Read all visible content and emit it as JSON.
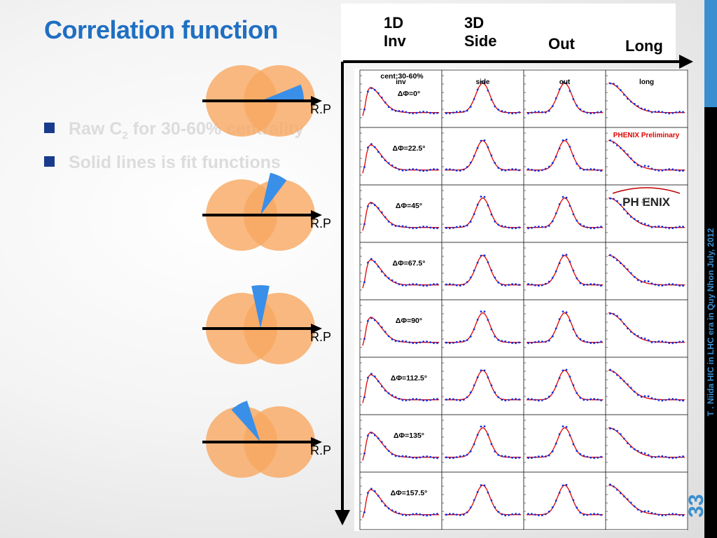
{
  "slide": {
    "title": "Correlation function",
    "bullets": [
      {
        "pre": "Raw C",
        "sub": "2",
        "post": " for 30-60% centrality"
      },
      {
        "pre": "Solid lines is fit functions",
        "sub": "",
        "post": ""
      }
    ],
    "rp_label": "R.P",
    "footer_vertical": "T . Niida      HIC in LHC era in Quy Nhon      July, 2012",
    "page_number": "33"
  },
  "column_headers": [
    {
      "line1": "1D",
      "line2": "Inv"
    },
    {
      "line1": "3D",
      "line2": "Side"
    },
    {
      "line1": "",
      "line2": "Out"
    },
    {
      "line1": "",
      "line2": "Long"
    }
  ],
  "figure": {
    "top_label_line1": "cent:30-60%",
    "column_panel_labels": [
      "inv",
      "side",
      "out",
      "long"
    ],
    "rows": [
      "ΔΦ=0°",
      "ΔΦ=22.5°",
      "ΔΦ=45°",
      "ΔΦ=67.5°",
      "ΔΦ=90°",
      "ΔΦ=112.5°",
      "ΔΦ=135°",
      "ΔΦ=157.5°"
    ],
    "preliminary_label": "PHENIX Preliminary",
    "logo_text": "PH   ENIX",
    "colors": {
      "data": "#1030e0",
      "fit": "#e00000",
      "wedge": "#3a8fe8",
      "circle": "#f7a860"
    }
  },
  "reaction_plane_wedge_angles_deg": [
    10,
    65,
    90,
    120
  ]
}
